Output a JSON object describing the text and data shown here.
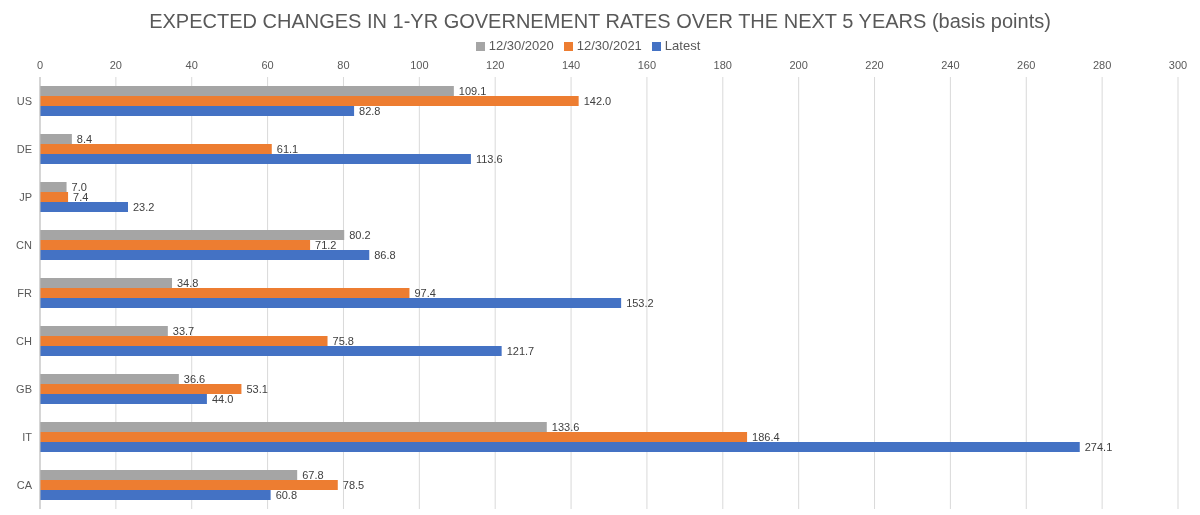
{
  "chart_data": {
    "type": "bar",
    "orientation": "horizontal",
    "title": "EXPECTED CHANGES IN 1-YR GOVERNEMENT RATES OVER THE NEXT 5 YEARS (basis points)",
    "categories": [
      "US",
      "DE",
      "JP",
      "CN",
      "FR",
      "CH",
      "GB",
      "IT",
      "CA"
    ],
    "series": [
      {
        "name": "12/30/2020",
        "color": "#a5a5a5",
        "values": [
          109.1,
          8.4,
          7.0,
          80.2,
          34.8,
          33.7,
          36.6,
          133.6,
          67.8
        ],
        "value_labels": [
          "109.1",
          "8.4",
          "7.0",
          "80.2",
          "34.8",
          "33.7",
          "36.6",
          "133.6",
          "67.8"
        ]
      },
      {
        "name": "12/30/2021",
        "color": "#ed7d31",
        "values": [
          142.0,
          61.1,
          7.4,
          71.2,
          97.4,
          75.8,
          53.1,
          186.4,
          78.5
        ],
        "value_labels": [
          "142.0",
          "61.1",
          "7.4",
          "71.2",
          "97.4",
          "75.8",
          "53.1",
          "186.4",
          "78.5"
        ]
      },
      {
        "name": "Latest",
        "color": "#4472c4",
        "values": [
          82.8,
          113.6,
          23.2,
          86.8,
          153.2,
          121.7,
          44.0,
          274.1,
          60.8
        ],
        "value_labels": [
          "82.8",
          "113.6",
          "23.2",
          "86.8",
          "153.2",
          "121.7",
          "44.0",
          "274.1",
          "60.8"
        ]
      }
    ],
    "xlim": [
      0,
      300
    ],
    "xticks": [
      0,
      20,
      40,
      60,
      80,
      100,
      120,
      140,
      160,
      180,
      200,
      220,
      240,
      260,
      280,
      300
    ],
    "grid": "x",
    "legend": "top"
  }
}
